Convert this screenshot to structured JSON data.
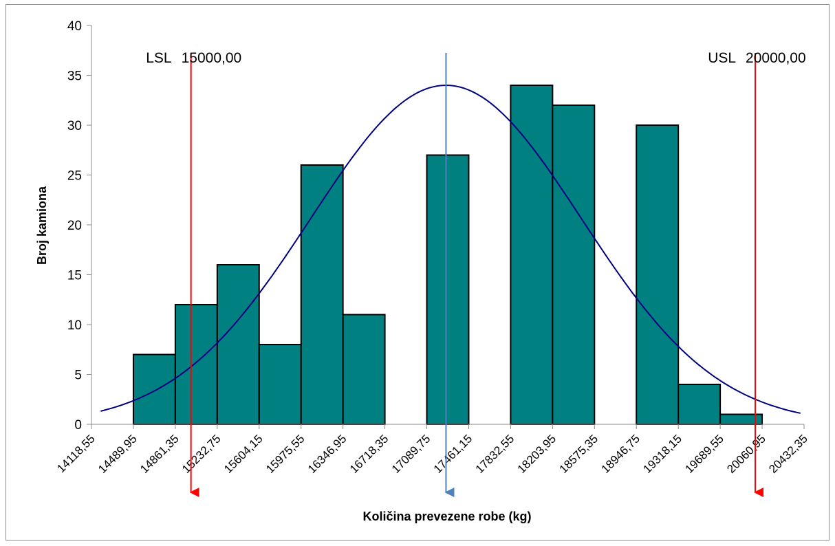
{
  "chart_data": {
    "type": "bar",
    "xlabel": "Količina prevezene robe (kg)",
    "ylabel": "Broj kamiona",
    "ylim": [
      0,
      40
    ],
    "yticks": [
      0,
      5,
      10,
      15,
      20,
      25,
      30,
      35,
      40
    ],
    "x_ticks": [
      "14118,55",
      "14489,95",
      "14861,35",
      "15232,75",
      "15604,15",
      "15975,55",
      "16346,95",
      "16718,35",
      "17089,75",
      "17461,15",
      "17832,55",
      "18203,95",
      "18575,35",
      "18946,75",
      "19318,15",
      "19689,55",
      "20060,95",
      "20432,35"
    ],
    "x_tick_values": [
      14118.55,
      14489.95,
      14861.35,
      15232.75,
      15604.15,
      15975.55,
      16346.95,
      16718.35,
      17089.75,
      17461.15,
      17832.55,
      18203.95,
      18575.35,
      18946.75,
      19318.15,
      19689.55,
      20060.95,
      20432.35
    ],
    "bins": [
      {
        "from": 14118.55,
        "to": 14489.95,
        "count": 0
      },
      {
        "from": 14489.95,
        "to": 14861.35,
        "count": 7
      },
      {
        "from": 14861.35,
        "to": 15232.75,
        "count": 12
      },
      {
        "from": 15232.75,
        "to": 15604.15,
        "count": 16
      },
      {
        "from": 15604.15,
        "to": 15975.55,
        "count": 8
      },
      {
        "from": 15975.55,
        "to": 16346.95,
        "count": 26
      },
      {
        "from": 16346.95,
        "to": 16718.35,
        "count": 11
      },
      {
        "from": 16718.35,
        "to": 17089.75,
        "count": 0
      },
      {
        "from": 17089.75,
        "to": 17461.15,
        "count": 27
      },
      {
        "from": 17461.15,
        "to": 17832.55,
        "count": 0
      },
      {
        "from": 17832.55,
        "to": 18203.95,
        "count": 34
      },
      {
        "from": 18203.95,
        "to": 18575.35,
        "count": 32
      },
      {
        "from": 18575.35,
        "to": 18946.75,
        "count": 0
      },
      {
        "from": 18946.75,
        "to": 19318.15,
        "count": 30
      },
      {
        "from": 19318.15,
        "to": 19689.55,
        "count": 4
      },
      {
        "from": 19689.55,
        "to": 20060.95,
        "count": 1
      },
      {
        "from": 20060.95,
        "to": 20432.35,
        "count": 0
      }
    ],
    "normal_curve": {
      "mean": 17260,
      "peak": 34,
      "sd": 1200,
      "x_from": 14200,
      "x_to": 20400
    },
    "spec_limits": [
      {
        "label": "LSL",
        "value_text": "15000,00",
        "x": 15000,
        "color": "#ff0000"
      },
      {
        "label": "USL",
        "value_text": "20000,00",
        "x": 20000,
        "color": "#ff0000"
      }
    ],
    "mean_marker": {
      "x": 17260,
      "color": "#4f81bd"
    },
    "colors": {
      "bar_fill": "#008080",
      "bar_stroke": "#000000",
      "curve": "#000080",
      "axis": "#8c8c8c"
    },
    "grid": false,
    "legend": "none"
  }
}
